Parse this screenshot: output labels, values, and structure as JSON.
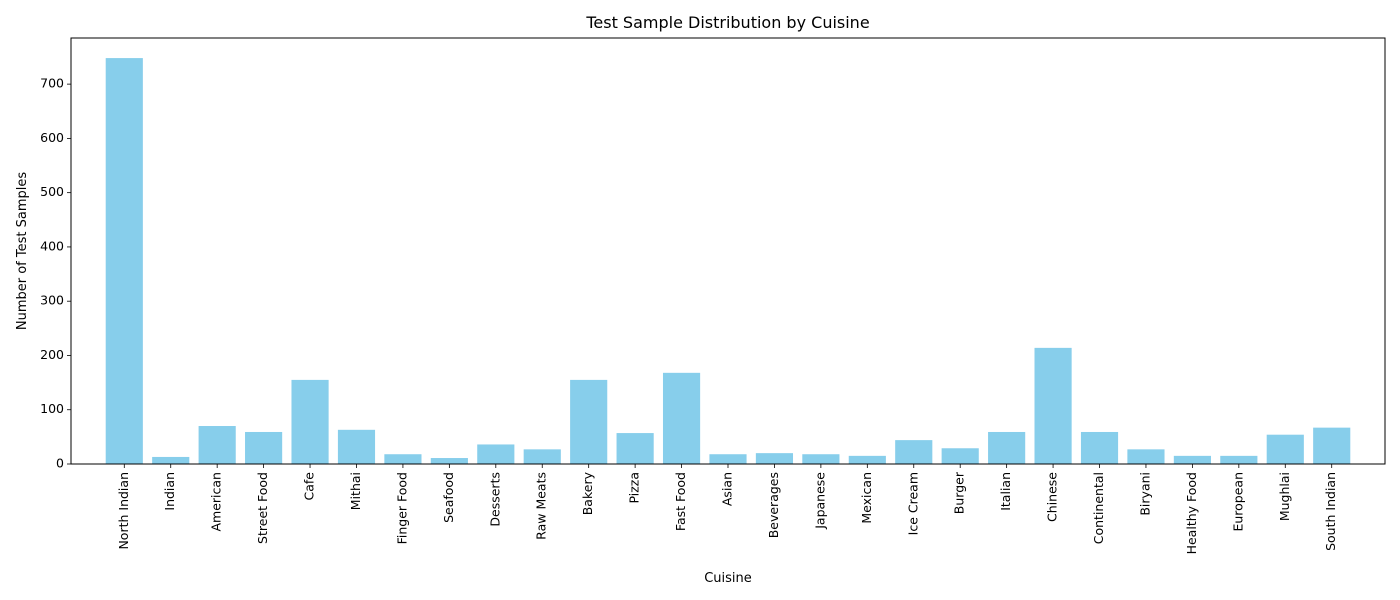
{
  "chart_data": {
    "type": "bar",
    "title": "Test Sample Distribution by Cuisine",
    "xlabel": "Cuisine",
    "ylabel": "Number of Test Samples",
    "categories": [
      "North Indian",
      "Indian",
      "American",
      "Street Food",
      "Cafe",
      "Mithai",
      "Finger Food",
      "Seafood",
      "Desserts",
      "Raw Meats",
      "Bakery",
      "Pizza",
      "Fast Food",
      "Asian",
      "Beverages",
      "Japanese",
      "Mexican",
      "Ice Cream",
      "Burger",
      "Italian",
      "Chinese",
      "Continental",
      "Biryani",
      "Healthy Food",
      "European",
      "Mughlai",
      "South Indian"
    ],
    "values": [
      748,
      13,
      70,
      59,
      155,
      63,
      18,
      11,
      36,
      27,
      155,
      57,
      168,
      18,
      20,
      18,
      15,
      44,
      29,
      59,
      214,
      59,
      27,
      15,
      15,
      54,
      67
    ],
    "ylim": [
      0,
      785
    ],
    "yticks": [
      0,
      100,
      200,
      300,
      400,
      500,
      600,
      700
    ],
    "bar_color": "#87ceeb",
    "grid": false,
    "legend": "none"
  }
}
